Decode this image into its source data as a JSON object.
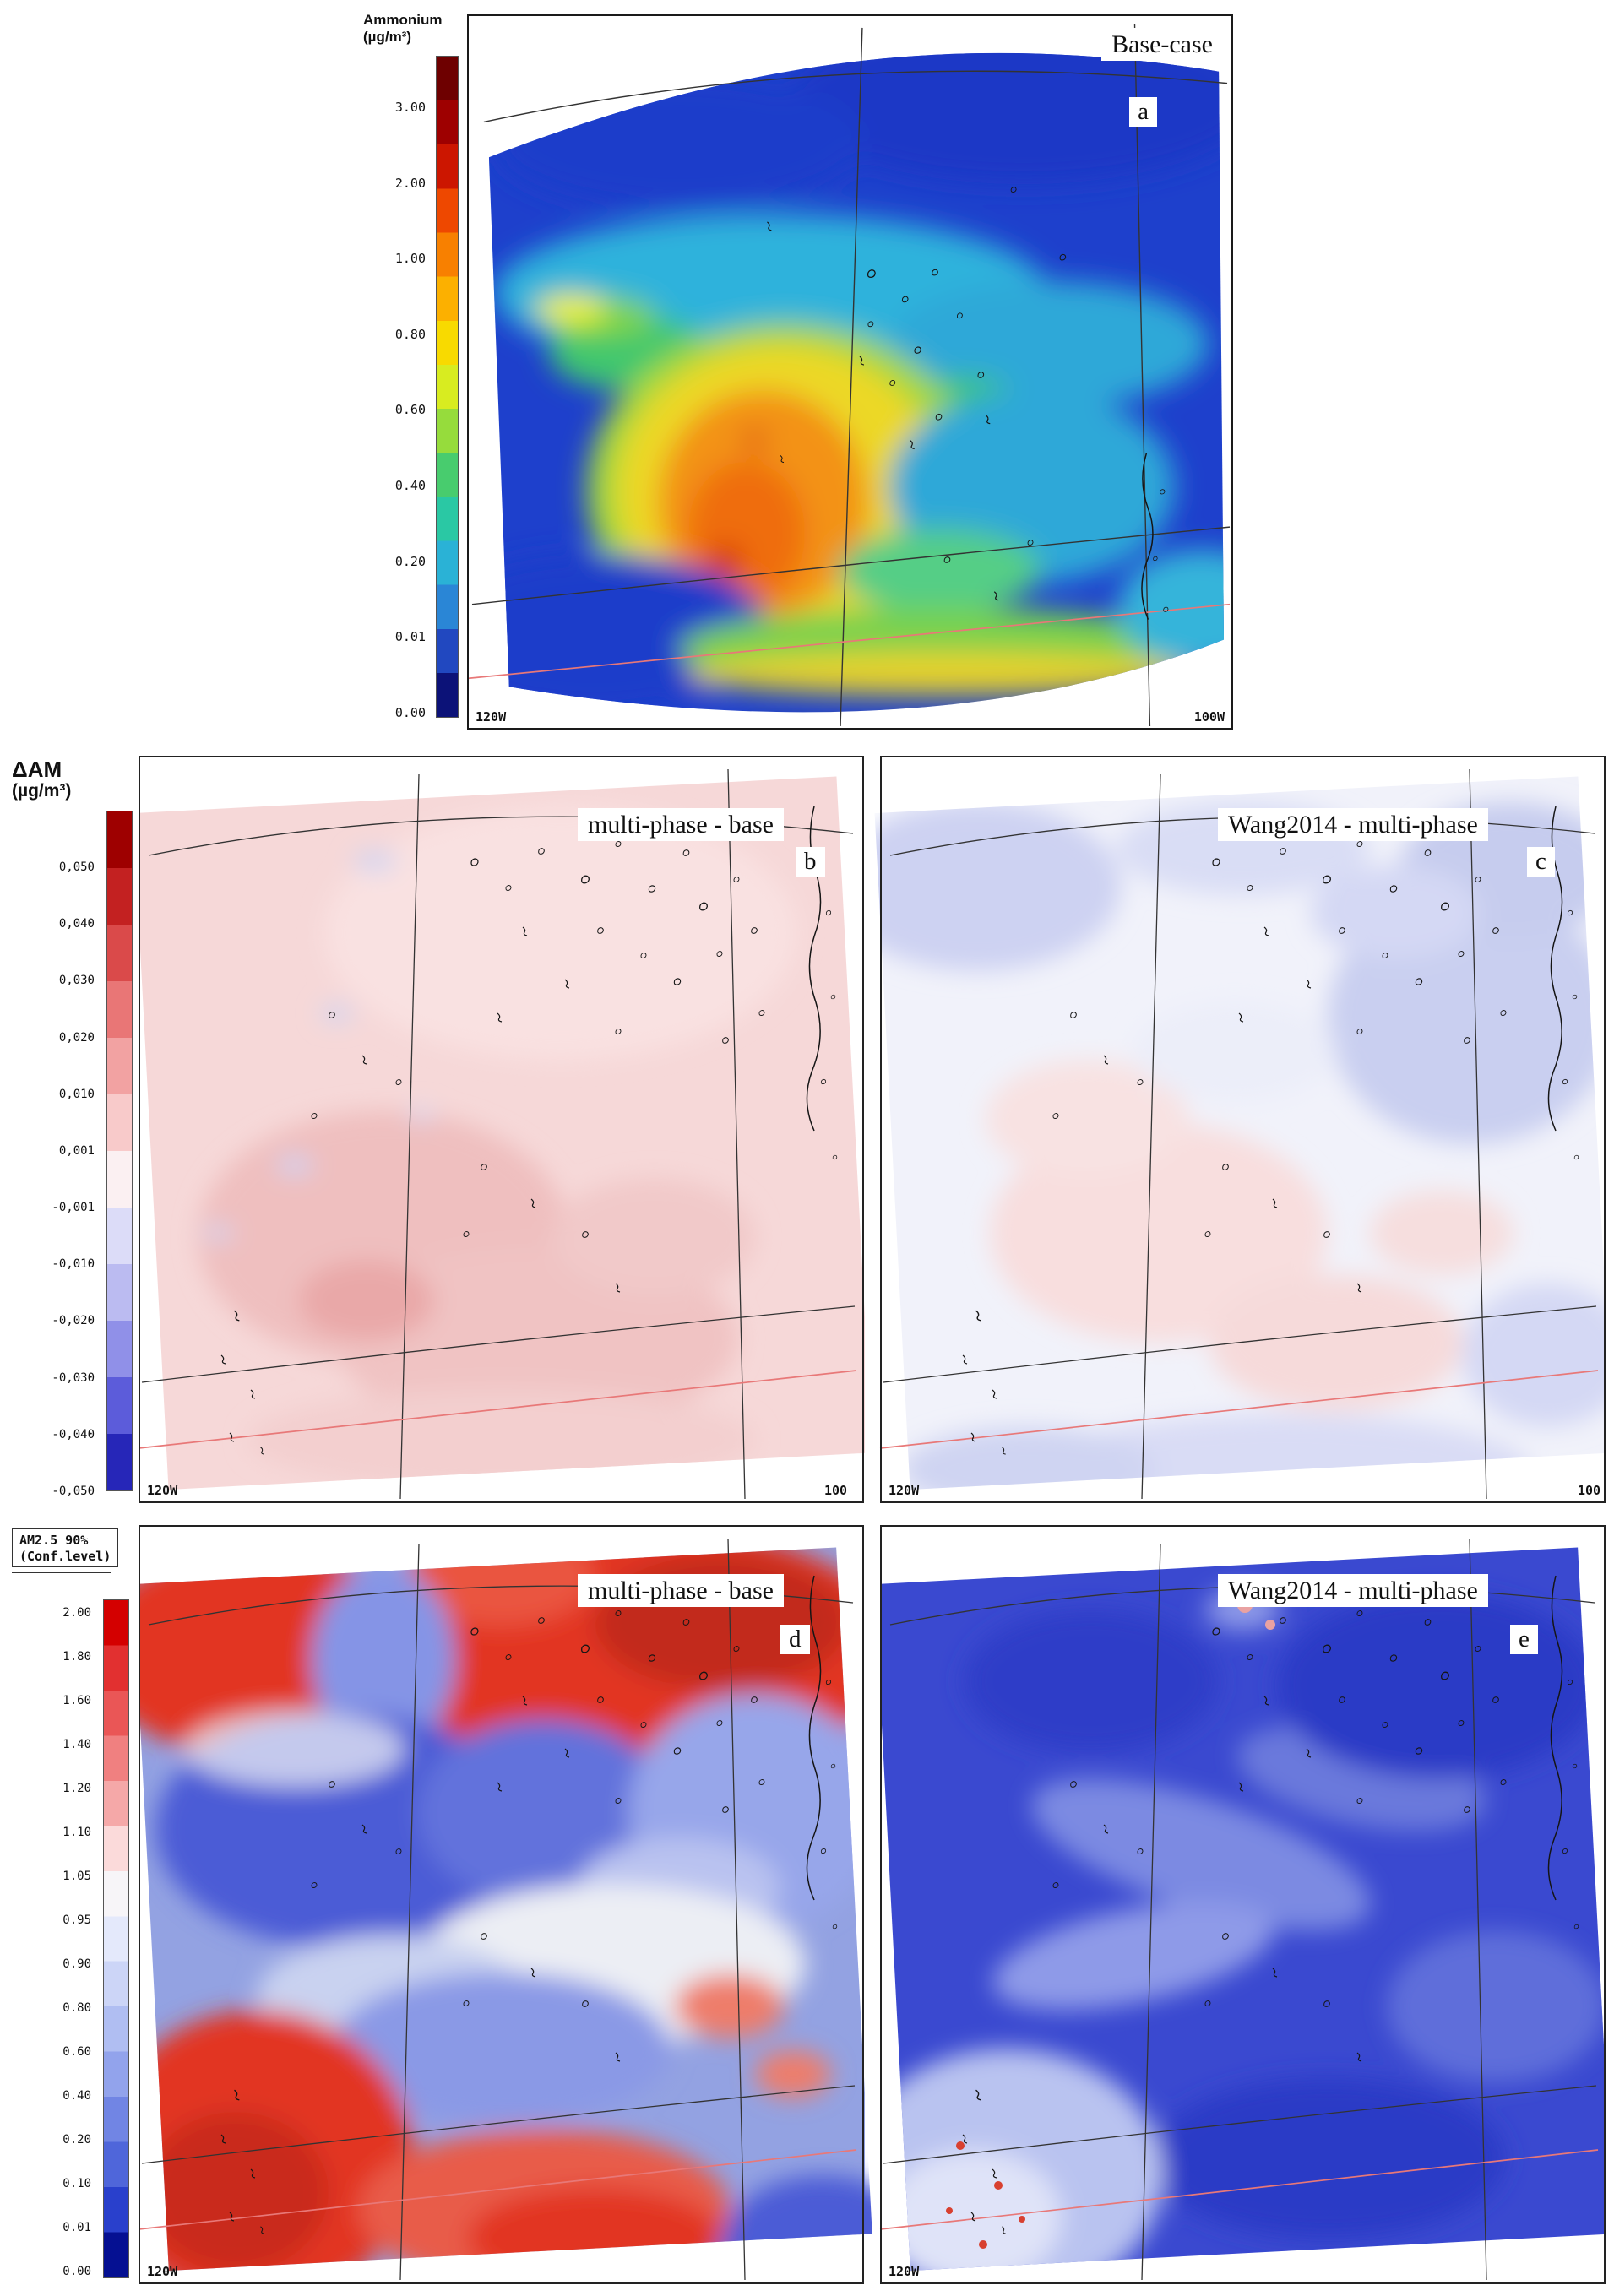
{
  "figure": {
    "panels": {
      "a": {
        "title": "Base-case",
        "letter": "a",
        "axis_left": "120W",
        "axis_right": "100W"
      },
      "b": {
        "title": "multi-phase - base",
        "letter": "b",
        "axis_left": "120W",
        "axis_right": "100"
      },
      "c": {
        "title": "Wang2014 - multi-phase",
        "letter": "c",
        "axis_left": "120W",
        "axis_right": "100"
      },
      "d": {
        "title": "multi-phase - base",
        "letter": "d",
        "axis_left": "120W"
      },
      "e": {
        "title": "Wang2014 - multi-phase",
        "letter": "e",
        "axis_left": "120W"
      }
    },
    "colorbars": {
      "ammonium": {
        "label": "Ammonium",
        "sublabel": "(µg/m³)",
        "ticks": [
          "3.00",
          "2.00",
          "1.00",
          "0.80",
          "0.60",
          "0.40",
          "0.20",
          "0.01",
          "0.00"
        ],
        "colors": [
          "#6e0000",
          "#9e0000",
          "#cc1600",
          "#ee4800",
          "#f88000",
          "#fcb000",
          "#f8da00",
          "#d8ec20",
          "#96dc3c",
          "#48cc6e",
          "#2ac8a4",
          "#2ab2d6",
          "#2a86d6",
          "#2148c0",
          "#0c1278"
        ]
      },
      "delta_am": {
        "label": "ΔAM",
        "sublabel": "(µg/m³)",
        "ticks": [
          "0,050",
          "0,040",
          "0,030",
          "0,020",
          "0,010",
          "0,001",
          "-0,001",
          "-0,010",
          "-0,020",
          "-0,030",
          "-0,040",
          "-0,050"
        ],
        "colors": [
          "#9e0000",
          "#c32121",
          "#da4a4a",
          "#e97676",
          "#f2a2a2",
          "#f8caca",
          "#fbf0f2",
          "#dcdcf8",
          "#bbbbf1",
          "#9090e8",
          "#5c5cda",
          "#2626b8"
        ]
      },
      "conf": {
        "label": "AM2.5 90%",
        "sublabel": "(Conf.level)",
        "ticks": [
          "2.00",
          "1.80",
          "1.60",
          "1.40",
          "1.20",
          "1.10",
          "1.05",
          "0.95",
          "0.90",
          "0.80",
          "0.60",
          "0.40",
          "0.20",
          "0.10",
          "0.01",
          "0.00"
        ],
        "colors": [
          "#d40000",
          "#e23030",
          "#ea5656",
          "#f08080",
          "#f5a8a8",
          "#fbdada",
          "#f7f5f8",
          "#e4e9fb",
          "#ccd5f7",
          "#b0bef2",
          "#92a3ec",
          "#7185e4",
          "#4f66da",
          "#2940cc",
          "#051092"
        ]
      }
    }
  },
  "chart_data": [
    {
      "type": "heatmap",
      "panel": "a",
      "title": "Base-case",
      "variable": "Ammonium",
      "units": "µg/m³",
      "colorbar_ticks": [
        3.0,
        2.0,
        1.0,
        0.8,
        0.6,
        0.4,
        0.2,
        0.01,
        0.0
      ],
      "x_axis_labels": [
        "120W",
        "100W"
      ],
      "legend_position": "left",
      "description": "Modeled surface ammonium concentration over a western North America domain. Low values (<0.2, dark blue) across the north and northwest; a cyan-green band (0.2-0.6) across mid-domain; a bright yellow spot (~0.8-1.0) at mid-left; a large elevated region in the center-south with orange core (1.0-2.0) and small red maxima (>2.0); a green-yellow band (0.4-0.8) along the southern edge east of center."
    },
    {
      "type": "heatmap",
      "panel": "b",
      "title": "multi-phase - base",
      "variable": "ΔAM",
      "units": "µg/m³",
      "colorbar_ticks": [
        0.05,
        0.04,
        0.03,
        0.02,
        0.01,
        0.001,
        -0.001,
        -0.01,
        -0.02,
        -0.03,
        -0.04,
        -0.05
      ],
      "x_axis_labels": [
        "120W",
        "100"
      ],
      "legend_position": "left",
      "description": "Difference map (multi-phase minus base): mostly weak positive differences (+0.001 to +0.020, light pink) over the whole domain, with stronger positive patches (+0.02 to +0.03) in the center-south, and a few tiny negative (lavender) specks in the west."
    },
    {
      "type": "heatmap",
      "panel": "c",
      "title": "Wang2014 - multi-phase",
      "variable": "ΔAM",
      "units": "µg/m³",
      "colorbar_ticks": [
        0.05,
        0.04,
        0.03,
        0.02,
        0.01,
        0.001,
        -0.001,
        -0.01,
        -0.02,
        -0.03,
        -0.04,
        -0.05
      ],
      "x_axis_labels": [
        "120W",
        "100"
      ],
      "legend_position": "left",
      "description": "Difference map (Wang2014 minus multi-phase): near-zero overall; weak negative differences (-0.001 to -0.02, lavender) over the northwest corner, east side and southern band; weak positive patches (+0.001 to +0.01, pale pink) in the center-west and south-center."
    },
    {
      "type": "heatmap",
      "panel": "d",
      "title": "multi-phase - base",
      "variable": "AM2.5 90% Conf.level",
      "units": "",
      "colorbar_ticks": [
        2.0,
        1.8,
        1.6,
        1.4,
        1.2,
        1.1,
        1.05,
        0.95,
        0.9,
        0.8,
        0.6,
        0.4,
        0.2,
        0.1,
        0.01,
        0.0
      ],
      "x_axis_labels": [
        "120W"
      ],
      "legend_position": "left",
      "description": "Confidence-level field with strong spatial contrast: high values (1.4-2.0, red) across the northern strip, the northeast, a large southwest blob and a south-central patch; low values (0.1-0.9, blue) over the west-center, center and east; white transition zones (~0.95-1.05) between them."
    },
    {
      "type": "heatmap",
      "panel": "e",
      "title": "Wang2014 - multi-phase",
      "variable": "AM2.5 90% Conf.level",
      "units": "",
      "colorbar_ticks": [
        2.0,
        1.8,
        1.6,
        1.4,
        1.2,
        1.1,
        1.05,
        0.95,
        0.9,
        0.8,
        0.6,
        0.4,
        0.2,
        0.1,
        0.01,
        0.0
      ],
      "x_axis_labels": [
        "120W"
      ],
      "legend_position": "left",
      "description": "Predominantly low confidence values (0.1-0.6, blue) across the entire domain with lighter streaks (0.8-1.0); a pale zone with small red (>1.4) speckles near the southwest corner and a few small pink dots near the top-center."
    }
  ]
}
